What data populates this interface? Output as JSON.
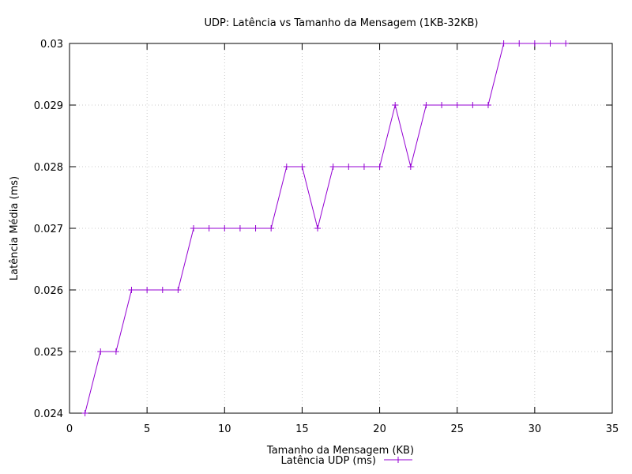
{
  "chart_data": {
    "type": "line",
    "title": "UDP: Latência vs Tamanho da Mensagem (1KB-32KB)",
    "xlabel": "Tamanho da Mensagem (KB)",
    "ylabel": "Latência Média (ms)",
    "xlim": [
      0,
      35
    ],
    "ylim": [
      0.024,
      0.03
    ],
    "xticks": [
      0,
      5,
      10,
      15,
      20,
      25,
      30,
      35
    ],
    "xtick_labels": [
      "0",
      "5",
      "10",
      "15",
      "20",
      "25",
      "30",
      "35"
    ],
    "yticks": [
      0.024,
      0.025,
      0.026,
      0.027,
      0.028,
      0.029,
      0.03
    ],
    "ytick_labels": [
      "0.024",
      "0.025",
      "0.026",
      "0.027",
      "0.028",
      "0.029",
      "0.03"
    ],
    "grid": true,
    "legend_position": "bottom-center",
    "series": [
      {
        "name": "Latência UDP (ms)",
        "color": "#9400d3",
        "marker": "plus",
        "x": [
          1,
          2,
          3,
          4,
          5,
          6,
          7,
          8,
          9,
          10,
          11,
          12,
          13,
          14,
          15,
          16,
          17,
          18,
          19,
          20,
          21,
          22,
          23,
          24,
          25,
          26,
          27,
          28,
          29,
          30,
          31,
          32
        ],
        "y": [
          0.024,
          0.025,
          0.025,
          0.026,
          0.026,
          0.026,
          0.026,
          0.027,
          0.027,
          0.027,
          0.027,
          0.027,
          0.027,
          0.028,
          0.028,
          0.027,
          0.028,
          0.028,
          0.028,
          0.028,
          0.029,
          0.028,
          0.029,
          0.029,
          0.029,
          0.029,
          0.029,
          0.03,
          0.03,
          0.03,
          0.03,
          0.03
        ]
      }
    ]
  }
}
